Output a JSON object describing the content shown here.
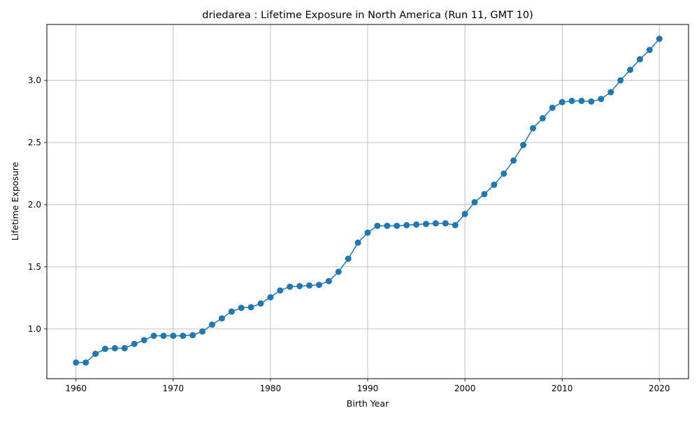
{
  "chart_data": {
    "type": "line",
    "title": "driedarea : Lifetime Exposure in North America (Run 11, GMT 10)",
    "xlabel": "Birth Year",
    "ylabel": "Lifetime Exposure",
    "xlim": [
      1957,
      2023
    ],
    "ylim": [
      0.6,
      3.45
    ],
    "xticks": [
      1960,
      1970,
      1980,
      1990,
      2000,
      2010,
      2020
    ],
    "yticks": [
      1.0,
      1.5,
      2.0,
      2.5,
      3.0
    ],
    "grid": true,
    "color": "#1f77b4",
    "marker": "circle",
    "x": [
      1960,
      1961,
      1962,
      1963,
      1964,
      1965,
      1966,
      1967,
      1968,
      1969,
      1970,
      1971,
      1972,
      1973,
      1974,
      1975,
      1976,
      1977,
      1978,
      1979,
      1980,
      1981,
      1982,
      1983,
      1984,
      1985,
      1986,
      1987,
      1988,
      1989,
      1990,
      1991,
      1992,
      1993,
      1994,
      1995,
      1996,
      1997,
      1998,
      1999,
      2000,
      2001,
      2002,
      2003,
      2004,
      2005,
      2006,
      2007,
      2008,
      2009,
      2010,
      2011,
      2012,
      2013,
      2014,
      2015,
      2016,
      2017,
      2018,
      2019,
      2020
    ],
    "y": [
      0.73,
      0.73,
      0.8,
      0.84,
      0.845,
      0.845,
      0.88,
      0.91,
      0.945,
      0.945,
      0.945,
      0.945,
      0.95,
      0.98,
      1.035,
      1.085,
      1.14,
      1.17,
      1.175,
      1.205,
      1.255,
      1.31,
      1.34,
      1.345,
      1.35,
      1.355,
      1.385,
      1.46,
      1.565,
      1.695,
      1.775,
      1.83,
      1.83,
      1.83,
      1.835,
      1.84,
      1.845,
      1.85,
      1.85,
      1.835,
      1.925,
      2.02,
      2.085,
      2.16,
      2.25,
      2.355,
      2.48,
      2.615,
      2.695,
      2.78,
      2.825,
      2.835,
      2.835,
      2.83,
      2.85,
      2.905,
      3.0,
      3.085,
      3.17,
      3.245,
      3.335
    ]
  }
}
